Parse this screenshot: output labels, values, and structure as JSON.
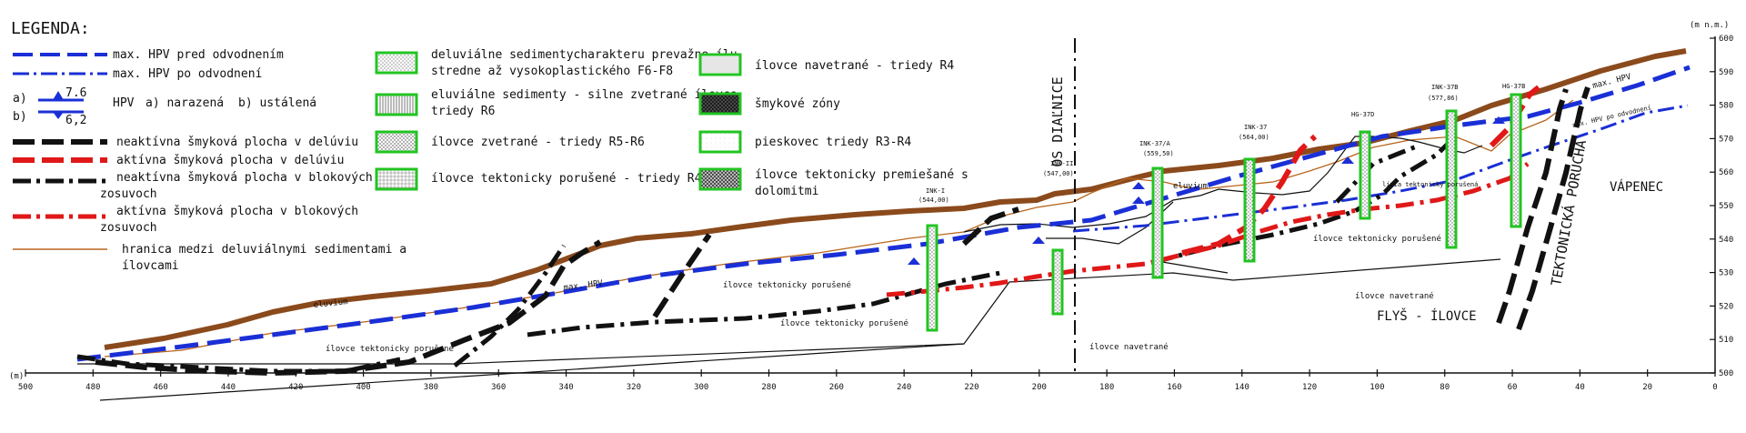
{
  "legend": {
    "title": "LEGENDA:",
    "lines": [
      {
        "label": "max. HPV pred odvodnením",
        "color": "#1a2fd6",
        "style": "dash"
      },
      {
        "label": "max. HPV po odvodnení",
        "color": "#1a2fd6",
        "style": "dashdot"
      },
      {
        "label": "neaktívna šmyková plocha v delúviu",
        "color": "#111111",
        "style": "dash"
      },
      {
        "label": "aktívna šmyková plocha v delúviu",
        "color": "#e01818",
        "style": "dash"
      },
      {
        "label": "neaktívna šmyková plocha v blokových zosuvoch",
        "color": "#111111",
        "style": "dashdot"
      },
      {
        "label": "aktívna šmyková plocha v blokových zosuvoch",
        "color": "#e01818",
        "style": "dashdot"
      },
      {
        "label": "hranica medzi deluviálnymi sedimentami a ílovcami",
        "color": "#b8651d",
        "style": "solid"
      }
    ],
    "hpv": {
      "a_prefix": "a)",
      "b_prefix": "b)",
      "a_value": "7.6",
      "b_value": "6,2",
      "label": "HPV",
      "a_text": "a) narazená",
      "b_text": "b) ustálená"
    },
    "materials": [
      {
        "label": "deluviálne sedimentycharakteru prevažne ílu stredne až vysokoplastického F6-F8",
        "pattern": "dots"
      },
      {
        "label": "eluviálne sedimenty - silne zvetrané ílovce triedy R6",
        "pattern": "vlines"
      },
      {
        "label": "ílovce zvetrané - triedy R5-R6",
        "pattern": "cross"
      },
      {
        "label": "ílovce tektonicky porušené - triedy R4-R6",
        "pattern": "grid"
      },
      {
        "label": "ílovce navetrané - triedy R4",
        "pattern": "hatch"
      },
      {
        "label": "šmykové zóny",
        "pattern": "dark"
      },
      {
        "label": "pieskovec triedy R3-R4",
        "pattern": "light"
      },
      {
        "label": "ílovce tektonicky premiešané s dolomitmi",
        "pattern": "xhatch"
      }
    ]
  },
  "axis": {
    "x_unit": "(m)",
    "y_unit": "(m n.m.)",
    "x_ticks": [
      "500",
      "480",
      "460",
      "440",
      "420",
      "400",
      "380",
      "360",
      "340",
      "320",
      "300",
      "280",
      "260",
      "240",
      "220",
      "200",
      "180",
      "160",
      "140",
      "120",
      "100",
      "80",
      "60",
      "40",
      "20",
      "0"
    ],
    "y_ticks": [
      "500",
      "510",
      "520",
      "530",
      "540",
      "550",
      "560",
      "570",
      "580",
      "590",
      "600"
    ]
  },
  "boreholes": [
    {
      "name": "INK-I",
      "elev": "(544,00)"
    },
    {
      "name": "INK-II",
      "elev": "(547,00)"
    },
    {
      "name": "INK-37/A",
      "elev": "(559,50)"
    },
    {
      "name": "INK-37",
      "elev": "(564,00)"
    },
    {
      "name": "HG-37D",
      "elev": ""
    },
    {
      "name": "INK-37B",
      "elev": "(577,86)"
    },
    {
      "name": "HG-37B",
      "elev": ""
    }
  ],
  "labels": {
    "os_dialnice": "OS DIAĽNICE",
    "tektonicka": "TEKTONICKÁ PORUCHA",
    "vapenec": "VÁPENEC",
    "flys": "FLYŠ - ÍLOVCE",
    "eluvium": "eluvium",
    "eluvium2": "eluvium",
    "max_hpv_1": "max. HPV",
    "max_hpv_2": "max. HPV",
    "max_hpv_po": "max. HPV po odvodnení",
    "ilovce_porusene_1": "ílovce tektonicky porušené",
    "ilovce_porusene_2": "ílovce tektonicky porušené",
    "ilovce_porusene_3": "ílovce tektonicky porušené",
    "ilovce_porusene_4": "ílovce tektonicky porušené",
    "ilovce_navetrane_1": "ílovce navetrané",
    "ilovce_navetrane_2": "ílovce navetrané",
    "linia": "línia tektonicky porušená"
  },
  "colors": {
    "terrain": "#8b4a1c",
    "hpv": "#1a2fd6",
    "active": "#e01818",
    "inactive": "#111111",
    "boundary": "#b8651d",
    "borehole": "#22c422"
  }
}
